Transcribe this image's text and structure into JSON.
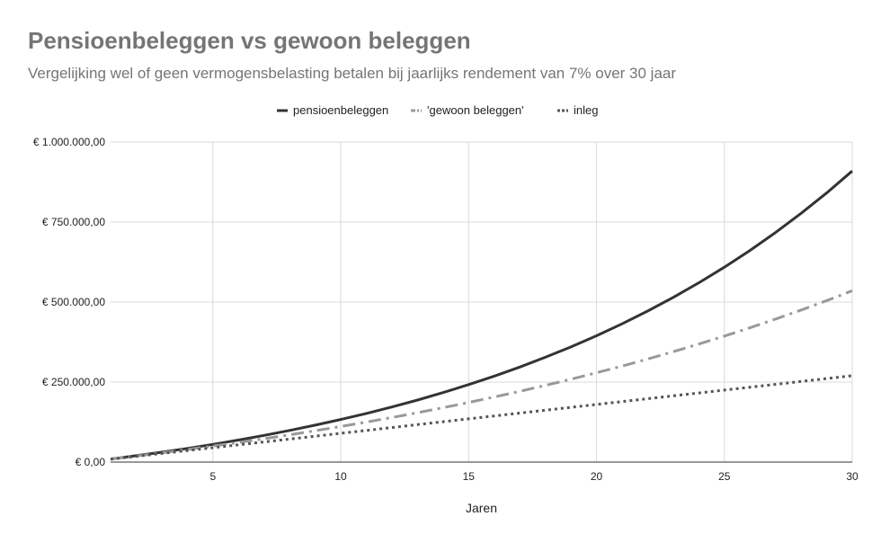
{
  "chart_data": {
    "type": "line",
    "title": "Pensioenbeleggen vs gewoon beleggen",
    "subtitle": "Vergelijking wel of geen vermogensbelasting betalen bij jaarlijks rendement van 7% over 30 jaar",
    "xlabel": "Jaren",
    "ylabel": "",
    "xlim": [
      1,
      30
    ],
    "ylim": [
      0,
      1000000
    ],
    "x_ticks": [
      5,
      10,
      15,
      20,
      25,
      30
    ],
    "y_ticks": [
      {
        "value": 0,
        "label": "€ 0,00"
      },
      {
        "value": 250000,
        "label": "€ 250.000,00"
      },
      {
        "value": 500000,
        "label": "€ 500.000,00"
      },
      {
        "value": 750000,
        "label": "€ 750.000,00"
      },
      {
        "value": 1000000,
        "label": "€ 1.000.000,00"
      }
    ],
    "grid": true,
    "legend_position": "top",
    "x": [
      1,
      2,
      3,
      4,
      5,
      6,
      7,
      8,
      9,
      10,
      11,
      12,
      13,
      14,
      15,
      16,
      17,
      18,
      19,
      20,
      21,
      22,
      23,
      24,
      25,
      26,
      27,
      28,
      29,
      30
    ],
    "series": [
      {
        "name": "pensioenbeleggen",
        "color": "#333333",
        "style": "solid",
        "values": [
          9630,
          19934,
          30960,
          42757,
          55380,
          68887,
          83339,
          98803,
          115350,
          133054,
          151998,
          172268,
          193957,
          217164,
          241995,
          268565,
          296994,
          327414,
          359963,
          394790,
          432055,
          471928,
          514592,
          560243,
          609091,
          661357,
          717282,
          777121,
          841148,
          909659
        ]
      },
      {
        "name": "'gewoon beleggen'",
        "color": "#999999",
        "style": "dashdot",
        "values": [
          9300,
          18900,
          28900,
          39300,
          50100,
          61300,
          73000,
          85200,
          97900,
          111100,
          124900,
          139300,
          154300,
          170000,
          186300,
          203300,
          221100,
          239600,
          258900,
          279100,
          300100,
          322000,
          344900,
          368800,
          393700,
          419700,
          446800,
          475100,
          504600,
          535500
        ]
      },
      {
        "name": "inleg",
        "color": "#555555",
        "style": "dotted",
        "values": [
          9000,
          18000,
          27000,
          36000,
          45000,
          54000,
          63000,
          72000,
          81000,
          90000,
          99000,
          108000,
          117000,
          126000,
          135000,
          144000,
          153000,
          162000,
          171000,
          180000,
          189000,
          198000,
          207000,
          216000,
          225000,
          234000,
          243000,
          252000,
          261000,
          270000
        ]
      }
    ]
  }
}
